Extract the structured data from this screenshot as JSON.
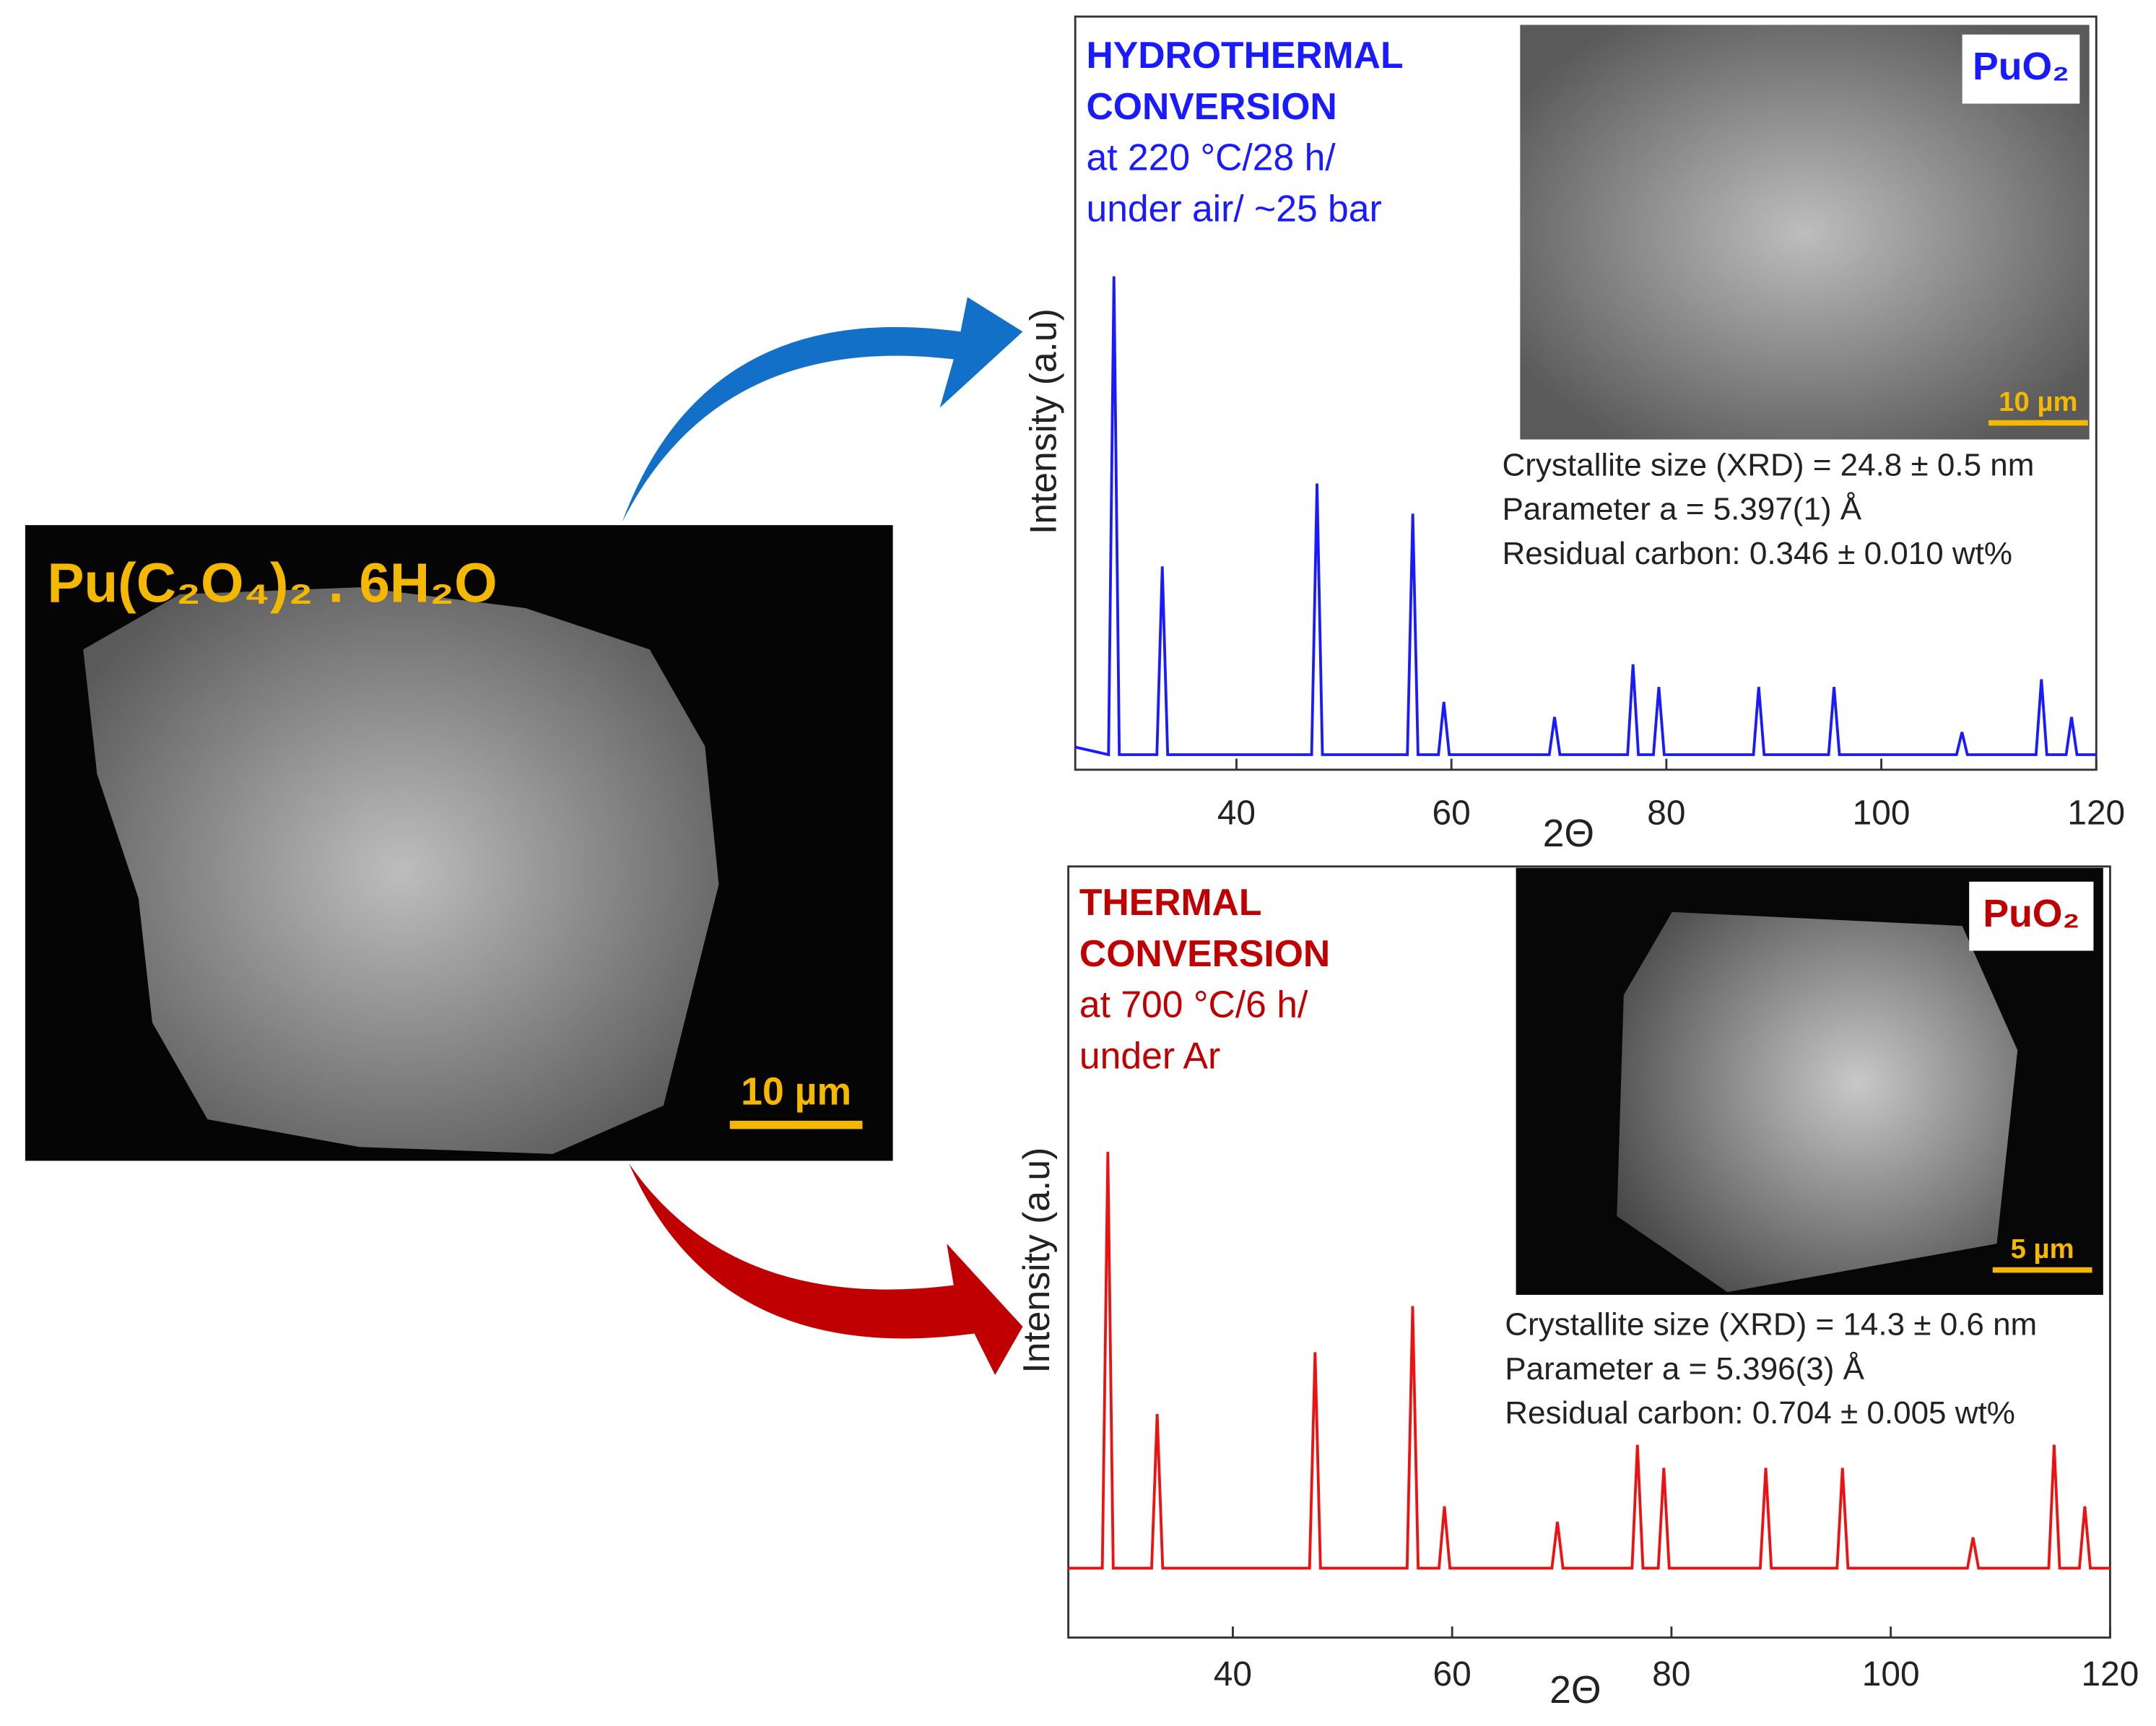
{
  "sem_image": {
    "label": "Pu(C₂O₄)₂ . 6H₂O",
    "scale_bar": "10 µm"
  },
  "chart_data": [
    {
      "type": "line",
      "color": "#1a1aff",
      "title_lines": [
        "HYDROTHERMAL",
        "CONVERSION"
      ],
      "annotations": [
        "at 220 °C/28 h/",
        "under air/ ~25 bar"
      ],
      "inset_label": "PuO₂",
      "inset_scale": "10 µm",
      "stats": [
        "Crystallite size (XRD) = 24.8 ± 0.5 nm",
        "Parameter a = 5.397(1) Å",
        "Residual carbon: 0.346 ± 0.010 wt%"
      ],
      "x_label": "2Θ",
      "y_label": "Intensity (a.u)",
      "xlim": [
        25,
        120
      ],
      "ylim": [
        0,
        100
      ],
      "xticks": [
        40,
        60,
        80,
        100,
        120
      ],
      "x": [
        25,
        28.1,
        28.6,
        29.1,
        32.6,
        33.1,
        33.6,
        47,
        47.5,
        48,
        55.9,
        56.4,
        56.9,
        58.8,
        59.3,
        59.8,
        69.1,
        69.6,
        70.1,
        76.4,
        76.9,
        77.4,
        78.8,
        79.3,
        79.8,
        88.1,
        88.6,
        89.1,
        95.1,
        95.6,
        96.1,
        107,
        107.5,
        108,
        114.4,
        114.9,
        115.4,
        117.2,
        117.7,
        118.2,
        120
      ],
      "values": [
        3,
        2,
        65.5,
        2,
        2,
        27,
        2,
        2,
        38,
        2,
        2,
        34,
        2,
        2,
        9,
        2,
        2,
        7,
        2,
        2,
        14,
        2,
        2,
        11,
        2,
        2,
        11,
        2,
        2,
        11,
        2,
        2,
        5,
        2,
        2,
        12,
        2,
        2,
        7,
        2,
        2
      ]
    },
    {
      "type": "line",
      "color": "#ee1111",
      "title_lines": [
        "THERMAL",
        "CONVERSION"
      ],
      "annotations": [
        "at 700 °C/6 h/",
        "under Ar"
      ],
      "inset_label": "PuO₂",
      "inset_scale": "5 µm",
      "stats": [
        "Crystallite size (XRD) = 14.3 ± 0.6 nm",
        "Parameter a = 5.396(3) Å",
        "Residual carbon: 0.704 ± 0.005 wt%"
      ],
      "x_label": "2Θ",
      "y_label": "Intensity (a.u)",
      "xlim": [
        25,
        120
      ],
      "ylim": [
        0,
        100
      ],
      "xticks": [
        40,
        60,
        80,
        100,
        120
      ],
      "x": [
        25,
        28.1,
        28.6,
        29.1,
        32.6,
        33.1,
        33.6,
        47,
        47.5,
        48,
        55.9,
        56.4,
        56.9,
        58.8,
        59.3,
        59.8,
        69.1,
        69.6,
        70.1,
        76.4,
        76.9,
        77.4,
        78.8,
        79.3,
        79.8,
        88.1,
        88.6,
        89.1,
        95.1,
        95.6,
        96.1,
        107,
        107.5,
        108,
        114.4,
        114.9,
        115.4,
        117.2,
        117.7,
        118.2,
        120
      ],
      "values": [
        9,
        9,
        63,
        9,
        9,
        29,
        9,
        9,
        37,
        9,
        9,
        43,
        9,
        9,
        17,
        9,
        9,
        15,
        9,
        9,
        25,
        9,
        9,
        22,
        9,
        9,
        22,
        9,
        9,
        22,
        9,
        9,
        13,
        9,
        9,
        25,
        9,
        9,
        17,
        9,
        9
      ]
    }
  ]
}
